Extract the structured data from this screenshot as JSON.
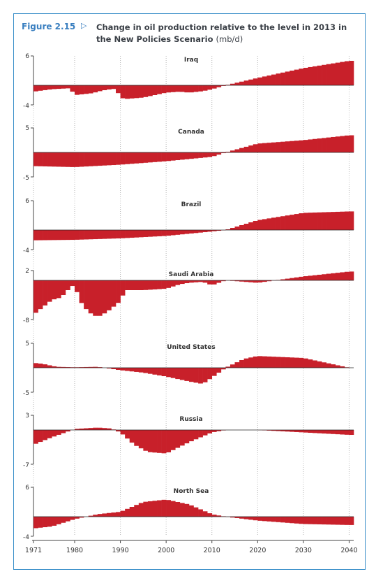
{
  "figure": {
    "label": "Figure 2.15",
    "arrow": "▷",
    "title": "Change in oil production relative to the level in 2013 in the New Policies Scenario",
    "unit": "(mb/d)"
  },
  "colors": {
    "bar": "#c8202a",
    "frame": "#3a8fc9",
    "label": "#3a7fc0",
    "grid": "#b9b9b9"
  },
  "chart_data": {
    "type": "area",
    "x_ticks": [
      1971,
      1980,
      1990,
      2000,
      2010,
      2020,
      2030,
      2040
    ],
    "xlim": [
      1971,
      2041
    ],
    "grid": "vertical dotted at decade ticks",
    "panels": [
      {
        "name": "Iraq",
        "ylim": [
          -4,
          6
        ],
        "y_tick_labels": [
          "6",
          "-4"
        ],
        "years": [
          1971,
          1975,
          1979,
          1980,
          1984,
          1985,
          1987,
          1989,
          1990,
          1991,
          1995,
          2000,
          2003,
          2005,
          2008,
          2010,
          2013,
          2020,
          2030,
          2040
        ],
        "values": [
          -1.3,
          -0.8,
          -0.6,
          -2.0,
          -1.6,
          -1.3,
          -0.9,
          -0.7,
          -2.5,
          -2.8,
          -2.5,
          -1.5,
          -1.3,
          -1.5,
          -1.2,
          -0.8,
          0.0,
          1.5,
          3.5,
          5.0
        ]
      },
      {
        "name": "Canada",
        "ylim": [
          -5,
          5
        ],
        "y_tick_labels": [
          "5",
          "-5"
        ],
        "years": [
          1971,
          1980,
          1990,
          2000,
          2010,
          2013,
          2020,
          2030,
          2040
        ],
        "values": [
          -2.8,
          -3.0,
          -2.5,
          -1.8,
          -0.9,
          0.0,
          1.8,
          2.5,
          3.5
        ]
      },
      {
        "name": "Brazil",
        "ylim": [
          -4,
          6
        ],
        "y_tick_labels": [
          "6",
          "-4"
        ],
        "years": [
          1971,
          1980,
          1990,
          2000,
          2010,
          2013,
          2020,
          2030,
          2040
        ],
        "values": [
          -2.1,
          -2.0,
          -1.7,
          -1.2,
          -0.3,
          0.0,
          2.0,
          3.5,
          3.8
        ]
      },
      {
        "name": "Saudi Arabia",
        "ylim": [
          -8,
          2
        ],
        "y_tick_labels": [
          "2",
          "-8"
        ],
        "years": [
          1971,
          1973,
          1975,
          1977,
          1979,
          1980,
          1981,
          1983,
          1985,
          1987,
          1989,
          1990,
          1991,
          1995,
          2000,
          2003,
          2005,
          2008,
          2010,
          2013,
          2020,
          2030,
          2040
        ],
        "values": [
          -7.0,
          -5.5,
          -4.0,
          -3.5,
          -1.5,
          -0.8,
          -4.0,
          -6.5,
          -7.5,
          -6.5,
          -5.0,
          -4.2,
          -2.0,
          -2.0,
          -1.7,
          -0.8,
          -0.5,
          -0.3,
          -1.0,
          0.0,
          -0.5,
          0.8,
          1.8
        ]
      },
      {
        "name": "United States",
        "ylim": [
          -5,
          5
        ],
        "y_tick_labels": [
          "5",
          "-5"
        ],
        "years": [
          1971,
          1973,
          1976,
          1980,
          1985,
          1990,
          1995,
          2000,
          2005,
          2008,
          2010,
          2013,
          2017,
          2020,
          2030,
          2035,
          2040
        ],
        "values": [
          1.0,
          0.8,
          0.2,
          0.1,
          0.2,
          -0.5,
          -1.0,
          -1.8,
          -2.8,
          -3.3,
          -2.0,
          0.0,
          1.8,
          2.4,
          2.0,
          1.0,
          0.0
        ]
      },
      {
        "name": "Russia",
        "ylim": [
          -7,
          3
        ],
        "y_tick_labels": [
          "3",
          "-7"
        ],
        "years": [
          1971,
          1975,
          1980,
          1985,
          1988,
          1990,
          1993,
          1996,
          2000,
          2005,
          2010,
          2013,
          2020,
          2030,
          2040
        ],
        "values": [
          -3.0,
          -1.5,
          0.2,
          0.5,
          0.3,
          -0.5,
          -3.0,
          -4.5,
          -4.8,
          -2.5,
          -0.5,
          0.0,
          0.0,
          -0.5,
          -1.0
        ]
      },
      {
        "name": "North Sea",
        "ylim": [
          -4,
          6
        ],
        "y_tick_labels": [
          "6",
          "-4"
        ],
        "years": [
          1971,
          1975,
          1980,
          1985,
          1990,
          1995,
          2000,
          2005,
          2010,
          2013,
          2020,
          2030,
          2040
        ],
        "values": [
          -2.4,
          -2.0,
          -0.5,
          0.5,
          1.0,
          3.0,
          3.5,
          2.5,
          0.5,
          0.0,
          -0.8,
          -1.5,
          -1.7
        ]
      }
    ]
  }
}
